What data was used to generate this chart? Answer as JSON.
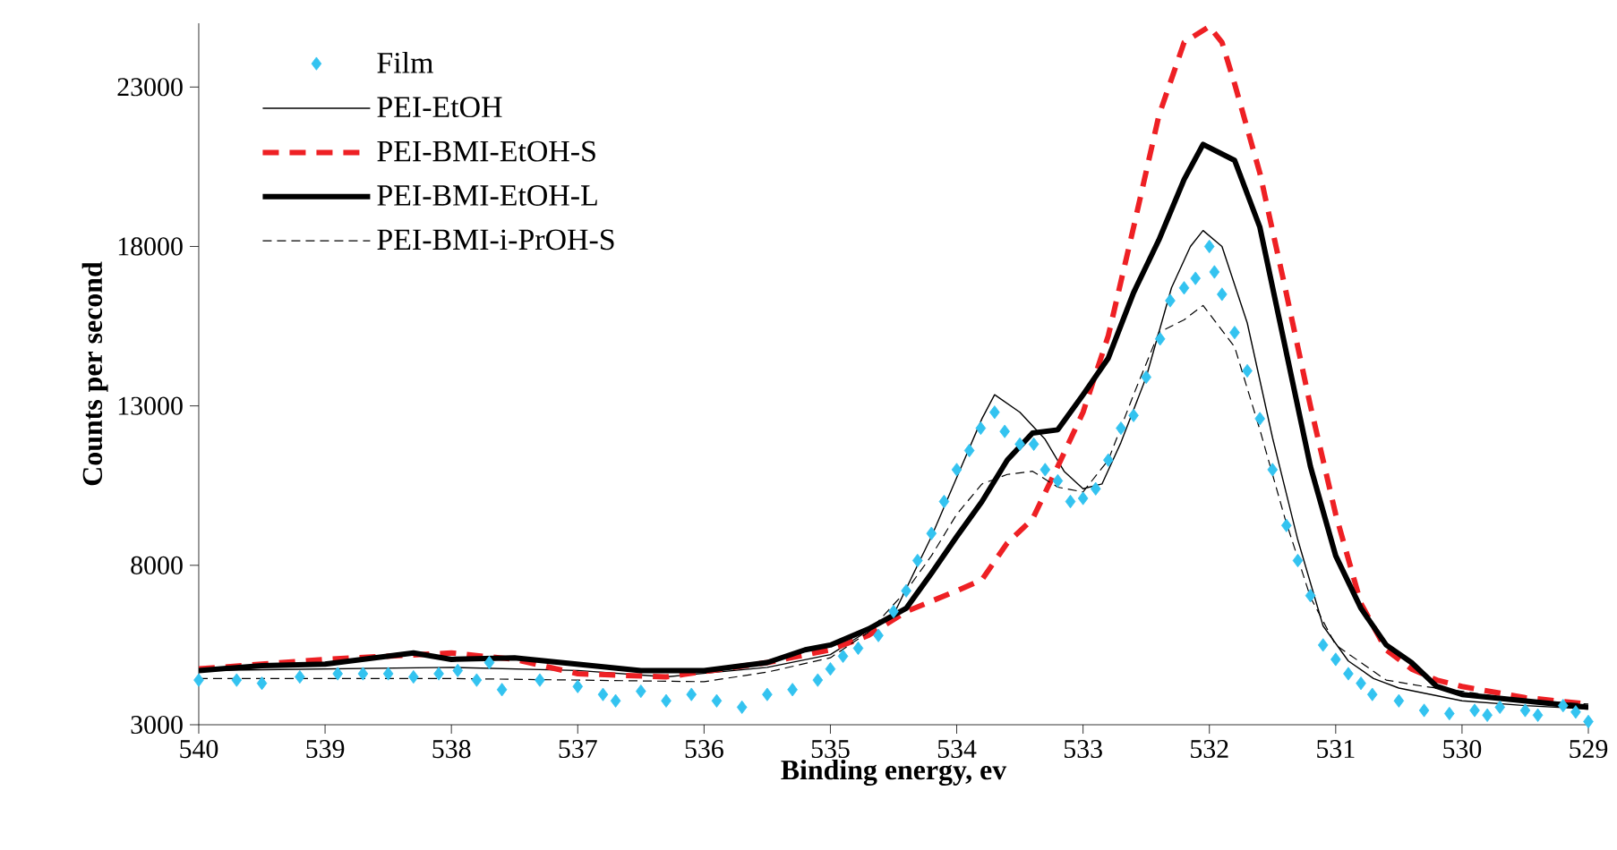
{
  "chart_data": {
    "type": "line",
    "xlabel": "Binding energy, ev",
    "ylabel": "Counts per second",
    "xlim": [
      540,
      529
    ],
    "xticks": [
      540,
      539,
      538,
      537,
      536,
      535,
      534,
      533,
      532,
      531,
      530,
      529
    ],
    "ylim": [
      3000,
      25000
    ],
    "yticks": [
      3000,
      8000,
      13000,
      18000,
      23000
    ],
    "grid": false,
    "legend": "top left",
    "series": [
      {
        "name": "Film",
        "type": "scatter",
        "marker": "diamond",
        "color": "#33c3f0",
        "x": [
          540,
          539.7,
          539.5,
          539.2,
          538.9,
          538.7,
          538.5,
          538.3,
          538.1,
          537.95,
          537.8,
          537.7,
          537.6,
          537.3,
          537.0,
          536.8,
          536.7,
          536.5,
          536.3,
          536.1,
          535.9,
          535.7,
          535.5,
          535.3,
          535.1,
          535.0,
          534.9,
          534.78,
          534.62,
          534.5,
          534.4,
          534.31,
          534.2,
          534.1,
          534.0,
          533.9,
          533.81,
          533.7,
          533.62,
          533.5,
          533.39,
          533.3,
          533.2,
          533.1,
          533.0,
          532.9,
          532.8,
          532.7,
          532.6,
          532.5,
          532.39,
          532.31,
          532.2,
          532.11,
          532.0,
          531.96,
          531.9,
          531.8,
          531.7,
          531.6,
          531.5,
          531.39,
          531.3,
          531.2,
          531.1,
          531.0,
          530.9,
          530.8,
          530.71,
          530.5,
          530.3,
          530.1,
          529.9,
          529.8,
          529.7,
          529.5,
          529.4,
          529.2,
          529.1,
          529.0
        ],
        "values": [
          4400,
          4400,
          4300,
          4500,
          4600,
          4600,
          4600,
          4500,
          4600,
          4700,
          4400,
          4950,
          4100,
          4400,
          4200,
          3950,
          3750,
          4050,
          3750,
          3950,
          3750,
          3550,
          3950,
          4100,
          4400,
          4750,
          5150,
          5400,
          5800,
          6550,
          7200,
          8150,
          9000,
          10000,
          11000,
          11600,
          12300,
          12800,
          12200,
          11800,
          11800,
          11000,
          10650,
          10000,
          10100,
          10400,
          11300,
          12300,
          12700,
          13900,
          15100,
          16300,
          16700,
          17000,
          18000,
          17200,
          16500,
          15300,
          14100,
          12600,
          11000,
          9250,
          8150,
          7050,
          5500,
          5050,
          4600,
          4300,
          3950,
          3750,
          3450,
          3350,
          3450,
          3300,
          3550,
          3450,
          3300,
          3600,
          3400,
          3100
        ]
      },
      {
        "name": "PEI-EtOH",
        "line_style": "solid",
        "color": "#000000",
        "x": [
          540,
          539,
          538,
          537,
          536.3,
          535.5,
          535,
          534.8,
          534.5,
          534.2,
          534.0,
          533.8,
          533.7,
          533.5,
          533.3,
          533.15,
          533.0,
          532.85,
          532.7,
          532.5,
          532.3,
          532.15,
          532.05,
          531.9,
          531.7,
          531.5,
          531.3,
          531.1,
          530.9,
          530.7,
          530.5,
          530.0,
          529.5,
          529.0
        ],
        "values": [
          4700,
          4750,
          4800,
          4700,
          4500,
          4800,
          5200,
          5700,
          6450,
          8900,
          10750,
          12600,
          13350,
          12800,
          11950,
          10950,
          10400,
          10550,
          11850,
          13900,
          16700,
          18000,
          18500,
          18000,
          15600,
          12000,
          8800,
          6100,
          5000,
          4450,
          4150,
          3750,
          3600,
          3500
        ]
      },
      {
        "name": "PEI-BMI-EtOH-S",
        "line_style": "dashed",
        "color": "#ee2024",
        "x": [
          540,
          539,
          538,
          537.5,
          537,
          536.3,
          535.5,
          535,
          534.7,
          534.4,
          534.0,
          533.8,
          533.6,
          533.4,
          533.2,
          533.0,
          532.8,
          532.6,
          532.4,
          532.2,
          532.0,
          531.9,
          531.8,
          531.6,
          531.4,
          531.2,
          531.0,
          530.8,
          530.6,
          530.4,
          530.2,
          530.0,
          529.5,
          529.0
        ],
        "values": [
          4750,
          5050,
          5250,
          5050,
          4600,
          4500,
          4950,
          5350,
          5800,
          6550,
          7200,
          7550,
          8700,
          9450,
          11100,
          12800,
          15200,
          18600,
          22100,
          24400,
          24900,
          24400,
          23100,
          20300,
          16700,
          13000,
          9600,
          6800,
          5350,
          4750,
          4400,
          4200,
          3850,
          3650
        ]
      },
      {
        "name": "PEI-BMI-EtOH-L",
        "line_style": "solid",
        "color": "#000000",
        "x": [
          540,
          539.5,
          539,
          538.3,
          538,
          537.5,
          537,
          536.5,
          536,
          535.5,
          535.2,
          535,
          534.7,
          534.4,
          534.2,
          534.0,
          533.8,
          533.6,
          533.4,
          533.2,
          533.0,
          532.8,
          532.6,
          532.4,
          532.2,
          532.05,
          531.8,
          531.6,
          531.4,
          531.2,
          531.0,
          530.8,
          530.6,
          530.4,
          530.2,
          530.0,
          529.5,
          529.0
        ],
        "values": [
          4700,
          4850,
          4900,
          5250,
          5050,
          5100,
          4900,
          4700,
          4700,
          4950,
          5350,
          5500,
          6000,
          6650,
          7750,
          8900,
          10000,
          11300,
          12150,
          12250,
          13350,
          14500,
          16550,
          18200,
          20100,
          21200,
          20700,
          18600,
          14850,
          11100,
          8300,
          6650,
          5500,
          4950,
          4200,
          3950,
          3750,
          3550
        ]
      },
      {
        "name": "PEI-BMI-i-PrOH-S",
        "line_style": "dashed",
        "color": "#000000",
        "x": [
          540,
          539,
          538,
          537,
          536,
          535.5,
          535,
          534.7,
          534.4,
          534.2,
          534.0,
          533.8,
          533.6,
          533.4,
          533.2,
          533.0,
          532.8,
          532.6,
          532.4,
          532.2,
          532.05,
          531.8,
          531.6,
          531.4,
          531.2,
          531.0,
          530.8,
          530.6,
          530.3,
          530.0,
          529.5,
          529.0
        ],
        "values": [
          4450,
          4450,
          4450,
          4400,
          4350,
          4650,
          5100,
          5900,
          7200,
          8300,
          9600,
          10550,
          10850,
          10950,
          10450,
          10300,
          11300,
          13350,
          15300,
          15700,
          16150,
          14850,
          12250,
          9450,
          7000,
          5500,
          4950,
          4400,
          4200,
          4050,
          3750,
          3650
        ]
      }
    ]
  }
}
